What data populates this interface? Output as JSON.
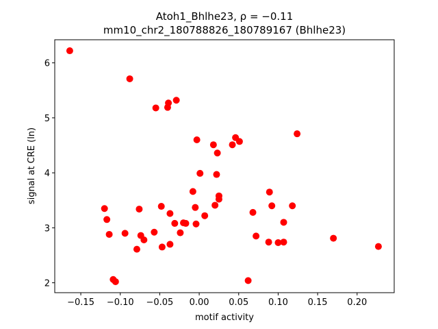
{
  "chart_data": {
    "type": "scatter",
    "title_line1": "Atoh1_Bhlhe23, ρ = −0.11",
    "title_line2": "mm10_chr2_180788826_180789167 (Bhlhe23)",
    "xlabel": "motif activity",
    "ylabel": "signal at CRE (ln)",
    "xlim": [
      -0.183,
      0.247
    ],
    "ylim": [
      1.82,
      6.42
    ],
    "xticks": [
      -0.15,
      -0.1,
      -0.05,
      0.0,
      0.05,
      0.1,
      0.15,
      0.2
    ],
    "xtick_labels": [
      "−0.15",
      "−0.10",
      "−0.05",
      "0.00",
      "0.05",
      "0.10",
      "0.15",
      "0.20"
    ],
    "yticks": [
      2,
      3,
      4,
      5,
      6
    ],
    "ytick_labels": [
      "2",
      "3",
      "4",
      "5",
      "6"
    ],
    "grid": false,
    "marker_color": "#ff0000",
    "points": [
      {
        "x": -0.164,
        "y": 6.22
      },
      {
        "x": -0.088,
        "y": 5.71
      },
      {
        "x": -0.029,
        "y": 5.32
      },
      {
        "x": -0.039,
        "y": 5.27
      },
      {
        "x": -0.04,
        "y": 5.19
      },
      {
        "x": -0.055,
        "y": 5.18
      },
      {
        "x": 0.124,
        "y": 4.71
      },
      {
        "x": 0.046,
        "y": 4.64
      },
      {
        "x": -0.003,
        "y": 4.6
      },
      {
        "x": 0.051,
        "y": 4.57
      },
      {
        "x": 0.018,
        "y": 4.51
      },
      {
        "x": 0.042,
        "y": 4.51
      },
      {
        "x": 0.023,
        "y": 4.36
      },
      {
        "x": 0.001,
        "y": 3.99
      },
      {
        "x": 0.022,
        "y": 3.97
      },
      {
        "x": -0.008,
        "y": 3.66
      },
      {
        "x": 0.089,
        "y": 3.65
      },
      {
        "x": 0.025,
        "y": 3.58
      },
      {
        "x": 0.025,
        "y": 3.52
      },
      {
        "x": 0.02,
        "y": 3.41
      },
      {
        "x": 0.092,
        "y": 3.4
      },
      {
        "x": 0.118,
        "y": 3.4
      },
      {
        "x": -0.048,
        "y": 3.39
      },
      {
        "x": -0.005,
        "y": 3.37
      },
      {
        "x": -0.12,
        "y": 3.35
      },
      {
        "x": -0.076,
        "y": 3.34
      },
      {
        "x": 0.068,
        "y": 3.28
      },
      {
        "x": -0.037,
        "y": 3.26
      },
      {
        "x": 0.007,
        "y": 3.22
      },
      {
        "x": -0.117,
        "y": 3.15
      },
      {
        "x": 0.107,
        "y": 3.1
      },
      {
        "x": -0.02,
        "y": 3.09
      },
      {
        "x": -0.031,
        "y": 3.08
      },
      {
        "x": -0.017,
        "y": 3.08
      },
      {
        "x": -0.004,
        "y": 3.07
      },
      {
        "x": -0.057,
        "y": 2.92
      },
      {
        "x": -0.024,
        "y": 2.91
      },
      {
        "x": -0.094,
        "y": 2.9
      },
      {
        "x": -0.114,
        "y": 2.88
      },
      {
        "x": -0.074,
        "y": 2.86
      },
      {
        "x": 0.072,
        "y": 2.85
      },
      {
        "x": 0.17,
        "y": 2.81
      },
      {
        "x": -0.07,
        "y": 2.78
      },
      {
        "x": 0.088,
        "y": 2.74
      },
      {
        "x": 0.107,
        "y": 2.74
      },
      {
        "x": 0.1,
        "y": 2.73
      },
      {
        "x": -0.037,
        "y": 2.7
      },
      {
        "x": 0.227,
        "y": 2.66
      },
      {
        "x": -0.047,
        "y": 2.65
      },
      {
        "x": -0.079,
        "y": 2.61
      },
      {
        "x": -0.109,
        "y": 2.06
      },
      {
        "x": 0.062,
        "y": 2.04
      },
      {
        "x": -0.106,
        "y": 2.02
      }
    ]
  }
}
